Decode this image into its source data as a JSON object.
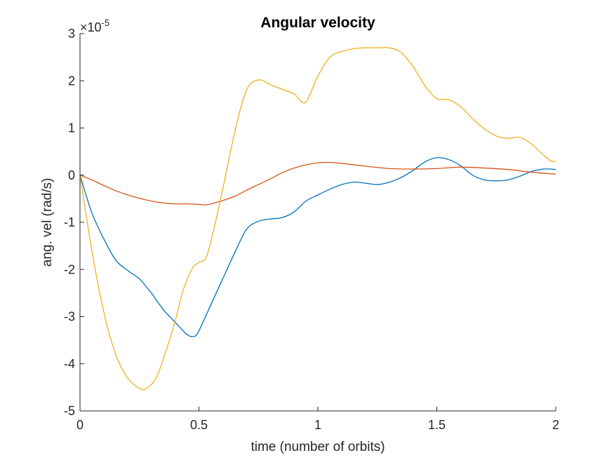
{
  "chart_data": {
    "type": "line",
    "title": "Angular velocity",
    "xlabel": "time (number of orbits)",
    "ylabel": "ang. vel (rad/s)",
    "xlim": [
      0,
      2
    ],
    "ylim": [
      -5,
      3
    ],
    "y_multiplier_label": "×10",
    "y_multiplier_exponent": "-5",
    "x_ticks": [
      {
        "value": 0,
        "label": "0"
      },
      {
        "value": 0.5,
        "label": "0.5"
      },
      {
        "value": 1,
        "label": "1"
      },
      {
        "value": 1.5,
        "label": "1.5"
      },
      {
        "value": 2,
        "label": "2"
      }
    ],
    "y_ticks": [
      {
        "value": 3,
        "label": "3"
      },
      {
        "value": 2,
        "label": "2"
      },
      {
        "value": 1,
        "label": "1"
      },
      {
        "value": 0,
        "label": "0"
      },
      {
        "value": -1,
        "label": "-1"
      },
      {
        "value": -2,
        "label": "-2"
      },
      {
        "value": -3,
        "label": "-3"
      },
      {
        "value": -4,
        "label": "-4"
      },
      {
        "value": -5,
        "label": "-5"
      }
    ],
    "grid": false,
    "legend": "none",
    "series": [
      {
        "color": "#0072BD",
        "x": [
          0,
          0.05,
          0.1,
          0.15,
          0.2,
          0.25,
          0.3,
          0.35,
          0.4,
          0.45,
          0.48,
          0.5,
          0.55,
          0.6,
          0.65,
          0.7,
          0.75,
          0.8,
          0.85,
          0.9,
          0.95,
          1.0,
          1.05,
          1.1,
          1.15,
          1.2,
          1.25,
          1.3,
          1.35,
          1.4,
          1.45,
          1.5,
          1.55,
          1.6,
          1.65,
          1.7,
          1.75,
          1.8,
          1.85,
          1.9,
          1.95,
          2.0
        ],
        "values": [
          0,
          -0.8,
          -1.35,
          -1.8,
          -2.02,
          -2.2,
          -2.5,
          -2.85,
          -3.12,
          -3.38,
          -3.42,
          -3.3,
          -2.75,
          -2.2,
          -1.65,
          -1.15,
          -0.98,
          -0.93,
          -0.9,
          -0.78,
          -0.55,
          -0.42,
          -0.3,
          -0.2,
          -0.15,
          -0.17,
          -0.2,
          -0.15,
          -0.05,
          0.1,
          0.28,
          0.37,
          0.33,
          0.2,
          0.0,
          -0.1,
          -0.12,
          -0.1,
          -0.02,
          0.08,
          0.13,
          0.12
        ]
      },
      {
        "color": "#D95319",
        "x": [
          0,
          0.05,
          0.1,
          0.15,
          0.2,
          0.25,
          0.3,
          0.35,
          0.4,
          0.45,
          0.5,
          0.53,
          0.58,
          0.65,
          0.7,
          0.75,
          0.8,
          0.85,
          0.9,
          0.95,
          1.0,
          1.05,
          1.1,
          1.2,
          1.3,
          1.4,
          1.5,
          1.6,
          1.7,
          1.8,
          1.9,
          2.0
        ],
        "values": [
          0,
          -0.1,
          -0.22,
          -0.33,
          -0.42,
          -0.49,
          -0.55,
          -0.59,
          -0.61,
          -0.61,
          -0.62,
          -0.63,
          -0.57,
          -0.45,
          -0.32,
          -0.2,
          -0.08,
          0.05,
          0.15,
          0.22,
          0.26,
          0.27,
          0.25,
          0.19,
          0.14,
          0.13,
          0.14,
          0.17,
          0.15,
          0.12,
          0.06,
          0.02
        ]
      },
      {
        "color": "#EDB120",
        "x": [
          0,
          0.05,
          0.1,
          0.15,
          0.2,
          0.25,
          0.28,
          0.32,
          0.35,
          0.4,
          0.43,
          0.47,
          0.5,
          0.53,
          0.56,
          0.6,
          0.65,
          0.7,
          0.75,
          0.8,
          0.85,
          0.9,
          0.93,
          0.95,
          0.97,
          1.0,
          1.05,
          1.1,
          1.15,
          1.2,
          1.25,
          1.3,
          1.35,
          1.4,
          1.45,
          1.5,
          1.55,
          1.6,
          1.65,
          1.7,
          1.75,
          1.8,
          1.85,
          1.9,
          1.95,
          1.98,
          2.0
        ],
        "values": [
          0,
          -1.6,
          -2.9,
          -3.8,
          -4.3,
          -4.52,
          -4.52,
          -4.3,
          -3.9,
          -3.1,
          -2.5,
          -2.0,
          -1.85,
          -1.75,
          -1.2,
          -0.3,
          0.9,
          1.8,
          2.02,
          1.92,
          1.82,
          1.72,
          1.56,
          1.55,
          1.75,
          2.1,
          2.5,
          2.62,
          2.68,
          2.7,
          2.7,
          2.7,
          2.6,
          2.3,
          1.9,
          1.62,
          1.6,
          1.45,
          1.2,
          0.98,
          0.83,
          0.78,
          0.8,
          0.65,
          0.42,
          0.3,
          0.3
        ]
      }
    ]
  }
}
